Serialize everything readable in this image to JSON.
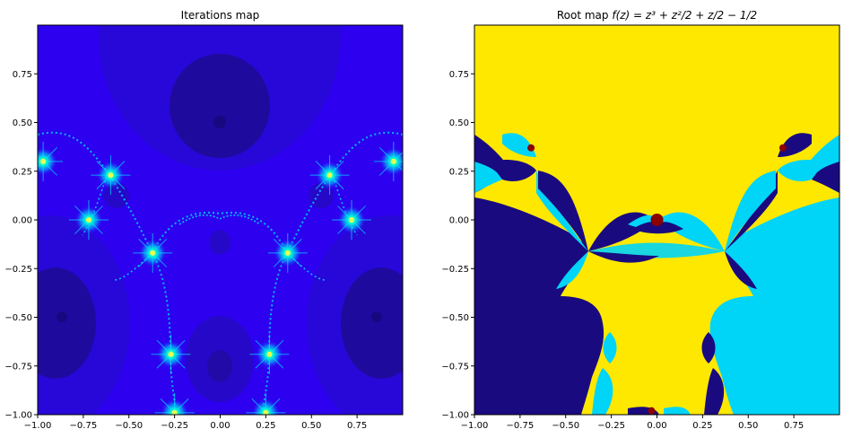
{
  "chart_data": [
    {
      "type": "heatmap",
      "title": "Iterations map",
      "xlim": [
        -1.0,
        1.0
      ],
      "ylim": [
        -1.0,
        1.0
      ],
      "xticks": [
        "−1.00",
        "−0.75",
        "−0.50",
        "−0.25",
        "0.00",
        "0.25",
        "0.50",
        "0.75"
      ],
      "xtick_values": [
        -1.0,
        -0.75,
        -0.5,
        -0.25,
        0.0,
        0.25,
        0.5,
        0.75
      ],
      "yticks": [
        "0.75",
        "0.50",
        "0.25",
        "0.00",
        "−0.25",
        "−0.50",
        "−0.75",
        "−1.00"
      ],
      "ytick_values": [
        0.75,
        0.5,
        0.25,
        0.0,
        -0.25,
        -0.5,
        -0.75,
        -1.0
      ],
      "grid": false,
      "colors": {
        "base": "#2d00f0",
        "dark": "#1f0a9e",
        "bright": "#00e5ff",
        "mid": "#3a1cff"
      },
      "attracting_roots": [
        {
          "x": 0.0,
          "y": 0.5
        },
        {
          "x": -0.87,
          "y": -0.5
        },
        {
          "x": 0.87,
          "y": -0.5
        }
      ],
      "bright_points": [
        {
          "x": -0.97,
          "y": 0.3
        },
        {
          "x": 0.95,
          "y": 0.3
        },
        {
          "x": -0.6,
          "y": 0.23
        },
        {
          "x": 0.6,
          "y": 0.23
        },
        {
          "x": -0.37,
          "y": -0.17
        },
        {
          "x": 0.37,
          "y": -0.17
        },
        {
          "x": -0.27,
          "y": -0.69
        },
        {
          "x": 0.27,
          "y": -0.69
        },
        {
          "x": -0.25,
          "y": -0.99
        },
        {
          "x": 0.25,
          "y": -0.99
        },
        {
          "x": -0.72,
          "y": 0.0
        },
        {
          "x": 0.72,
          "y": 0.0
        }
      ]
    },
    {
      "type": "heatmap",
      "title": "Root map",
      "title_math": "f(z) = z³ + z²/2 + z/2 − 1/2",
      "xlim": [
        -1.0,
        1.0
      ],
      "ylim": [
        -1.0,
        1.0
      ],
      "xticks": [
        "−1.00",
        "−0.75",
        "−0.50",
        "−0.25",
        "0.00",
        "0.25",
        "0.50",
        "0.75"
      ],
      "xtick_values": [
        -1.0,
        -0.75,
        -0.5,
        -0.25,
        0.0,
        0.25,
        0.5,
        0.75
      ],
      "yticks": [
        "0.75",
        "0.50",
        "0.25",
        "0.00",
        "−0.25",
        "−0.50",
        "−0.75",
        "−1.00"
      ],
      "ytick_values": [
        0.75,
        0.5,
        0.25,
        0.0,
        -0.25,
        -0.5,
        -0.75,
        -1.0
      ],
      "grid": false,
      "colors": {
        "yellow": "#ffe800",
        "cyan": "#00d4f7",
        "navy": "#1a0a80",
        "dark_red": "#8b0000"
      },
      "basins": [
        {
          "color": "yellow",
          "region": "top and center"
        },
        {
          "color": "navy",
          "region": "bottom-left"
        },
        {
          "color": "cyan",
          "region": "bottom-right"
        }
      ],
      "special_points": [
        {
          "x": 0.0,
          "y": 0.0
        },
        {
          "x": -0.69,
          "y": 0.37
        },
        {
          "x": 0.69,
          "y": 0.37
        },
        {
          "x": -0.03,
          "y": -0.98
        }
      ]
    }
  ]
}
